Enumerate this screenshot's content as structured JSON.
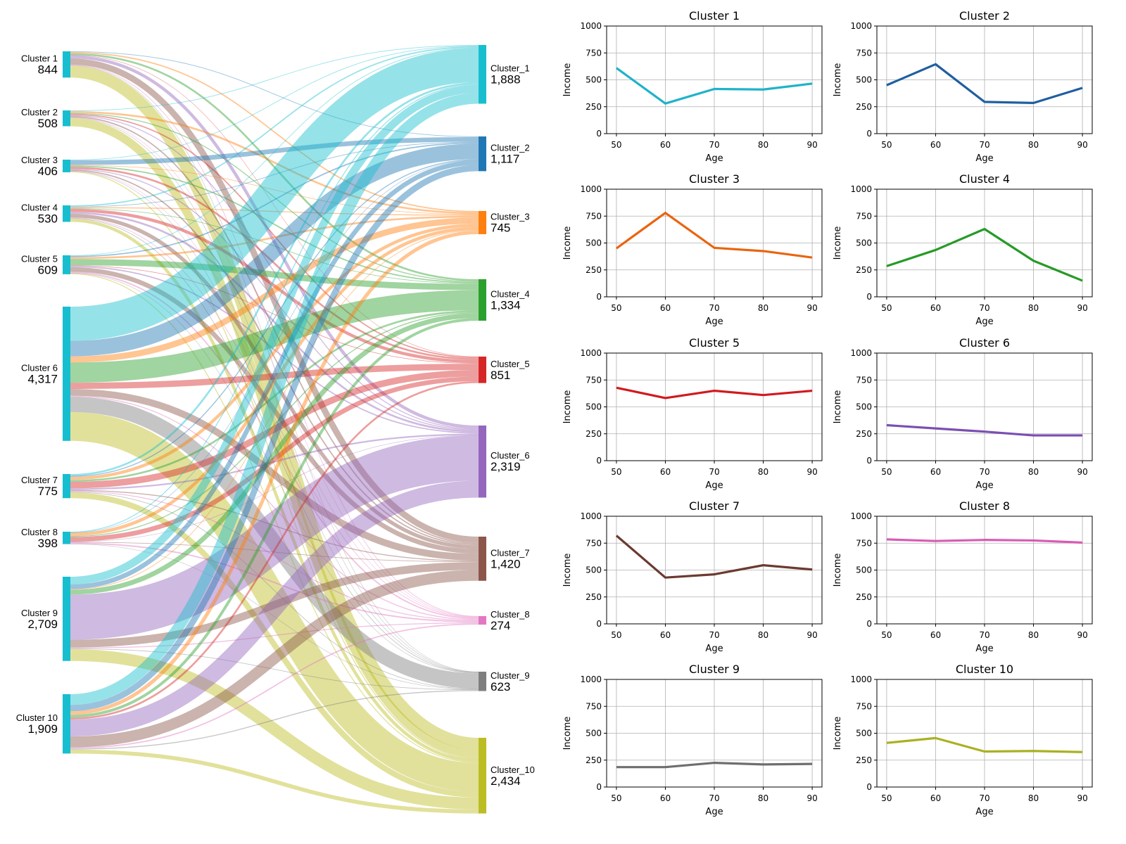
{
  "chart_data": [
    {
      "type": "sankey",
      "sources": [
        {
          "label": "Cluster 1",
          "value": 844,
          "value_label": "844"
        },
        {
          "label": "Cluster 2",
          "value": 508,
          "value_label": "508"
        },
        {
          "label": "Cluster 3",
          "value": 406,
          "value_label": "406"
        },
        {
          "label": "Cluster 4",
          "value": 530,
          "value_label": "530"
        },
        {
          "label": "Cluster 5",
          "value": 609,
          "value_label": "609"
        },
        {
          "label": "Cluster 6",
          "value": 4317,
          "value_label": "4,317"
        },
        {
          "label": "Cluster 7",
          "value": 775,
          "value_label": "775"
        },
        {
          "label": "Cluster 8",
          "value": 398,
          "value_label": "398"
        },
        {
          "label": "Cluster 9",
          "value": 2709,
          "value_label": "2,709"
        },
        {
          "label": "Cluster 10",
          "value": 1909,
          "value_label": "1,909"
        }
      ],
      "targets": [
        {
          "label": "Cluster_1",
          "value": 1888,
          "value_label": "1,888",
          "color": "#17becf"
        },
        {
          "label": "Cluster_2",
          "value": 1117,
          "value_label": "1,117",
          "color": "#1f77b4"
        },
        {
          "label": "Cluster_3",
          "value": 745,
          "value_label": "745",
          "color": "#ff7f0e"
        },
        {
          "label": "Cluster_4",
          "value": 1334,
          "value_label": "1,334",
          "color": "#2ca02c"
        },
        {
          "label": "Cluster_5",
          "value": 851,
          "value_label": "851",
          "color": "#d62728"
        },
        {
          "label": "Cluster_6",
          "value": 2319,
          "value_label": "2,319",
          "color": "#9467bd"
        },
        {
          "label": "Cluster_7",
          "value": 1420,
          "value_label": "1,420",
          "color": "#8c564b"
        },
        {
          "label": "Cluster_8",
          "value": 274,
          "value_label": "274",
          "color": "#e377c2"
        },
        {
          "label": "Cluster_9",
          "value": 623,
          "value_label": "623",
          "color": "#7f7f7f"
        },
        {
          "label": "Cluster_10",
          "value": 2434,
          "value_label": "2,434",
          "color": "#bcbd22"
        }
      ],
      "source_color": "#17becf",
      "flows": [
        [
          0,
          20,
          40,
          60,
          10,
          100,
          200,
          20,
          10,
          384
        ],
        [
          20,
          0,
          60,
          30,
          40,
          30,
          40,
          10,
          10,
          268
        ],
        [
          20,
          150,
          20,
          40,
          60,
          30,
          40,
          10,
          6,
          30
        ],
        [
          40,
          20,
          30,
          20,
          100,
          60,
          120,
          20,
          20,
          100
        ],
        [
          20,
          40,
          60,
          200,
          20,
          40,
          150,
          40,
          10,
          29
        ],
        [
          1100,
          500,
          196,
          650,
          200,
          0,
          220,
          30,
          492,
          929
        ],
        [
          60,
          30,
          100,
          60,
          211,
          50,
          30,
          30,
          20,
          184
        ],
        [
          28,
          7,
          104,
          30,
          150,
          10,
          20,
          44,
          5,
          0
        ],
        [
          250,
          150,
          20,
          154,
          0,
          1454,
          250,
          30,
          20,
          381
        ],
        [
          350,
          200,
          115,
          90,
          60,
          545,
          350,
          40,
          30,
          129
        ]
      ]
    },
    {
      "type": "line",
      "panels": [
        {
          "title": "Cluster 1",
          "color": "#1fb3c9",
          "y": [
            610,
            280,
            415,
            410,
            465
          ]
        },
        {
          "title": "Cluster 2",
          "color": "#1f5fa0",
          "y": [
            450,
            645,
            295,
            285,
            425
          ]
        },
        {
          "title": "Cluster 3",
          "color": "#ea640f",
          "y": [
            450,
            780,
            455,
            425,
            365
          ]
        },
        {
          "title": "Cluster 4",
          "color": "#279a27",
          "y": [
            285,
            435,
            630,
            335,
            150
          ]
        },
        {
          "title": "Cluster 5",
          "color": "#d11a1e",
          "y": [
            678,
            582,
            650,
            610,
            650
          ]
        },
        {
          "title": "Cluster 6",
          "color": "#7b4fb2",
          "y": [
            330,
            300,
            270,
            235,
            235
          ]
        },
        {
          "title": "Cluster 7",
          "color": "#6b3a30",
          "y": [
            820,
            430,
            460,
            545,
            505
          ]
        },
        {
          "title": "Cluster 8",
          "color": "#d85cb4",
          "y": [
            785,
            770,
            780,
            775,
            755
          ]
        },
        {
          "title": "Cluster 9",
          "color": "#6e6e6e",
          "y": [
            185,
            185,
            225,
            210,
            215
          ]
        },
        {
          "title": "Cluster 10",
          "color": "#aab122",
          "y": [
            410,
            455,
            330,
            335,
            325
          ]
        }
      ],
      "x": [
        50,
        60,
        70,
        80,
        90
      ],
      "xticks": [
        "50",
        "60",
        "70",
        "80",
        "90"
      ],
      "yticks": [
        "0",
        "250",
        "500",
        "750",
        "1000"
      ],
      "xlabel": "Age",
      "ylabel": "Income",
      "xlim": [
        48,
        92
      ],
      "ylim": [
        0,
        1000
      ],
      "grid": true
    }
  ]
}
